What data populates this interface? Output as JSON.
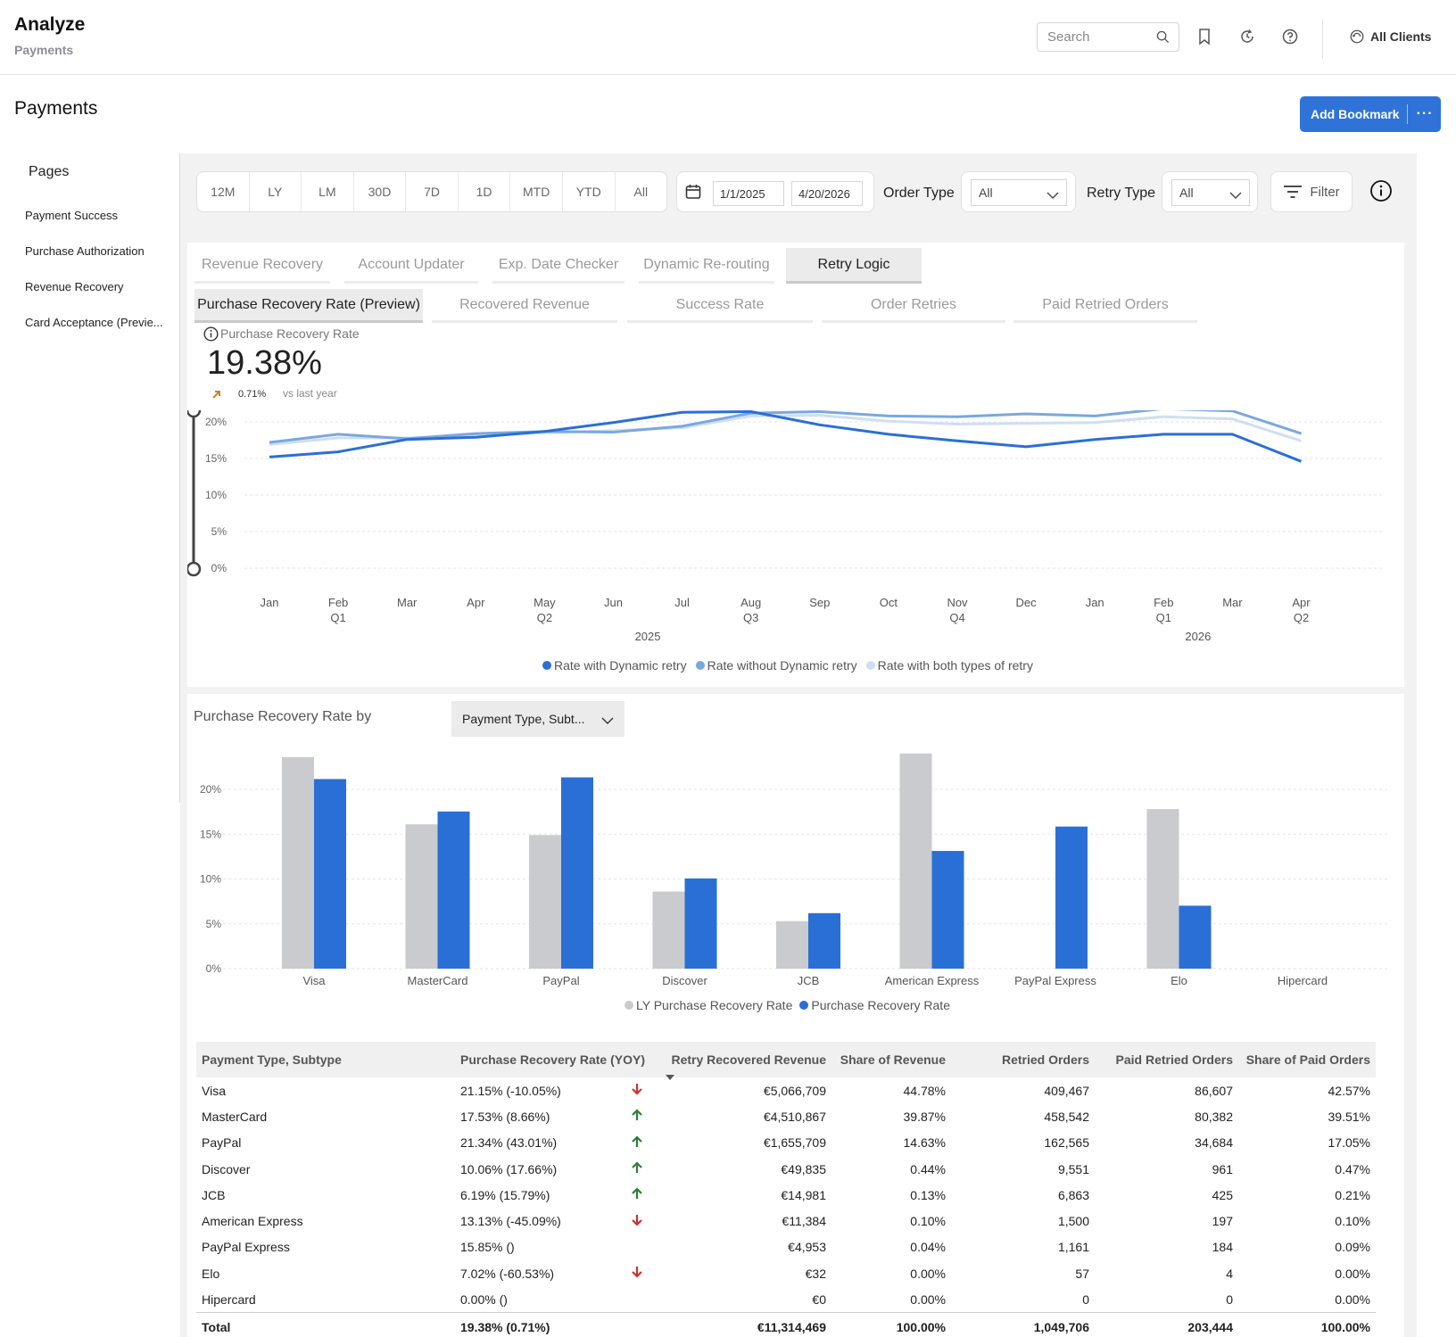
{
  "header": {
    "app_title": "Analyze",
    "app_subtitle": "Payments",
    "search_placeholder": "Search",
    "clients_label": "All Clients"
  },
  "page": {
    "title": "Payments",
    "bookmark_label": "Add Bookmark",
    "more_label": "···"
  },
  "sidebar": {
    "title": "Pages",
    "items": [
      {
        "label": "Payment Success"
      },
      {
        "label": "Purchase Authorization"
      },
      {
        "label": "Revenue Recovery"
      },
      {
        "label": "Card Acceptance (Previe..."
      }
    ]
  },
  "filters": {
    "ranges": [
      "12M",
      "LY",
      "LM",
      "30D",
      "7D",
      "1D",
      "MTD",
      "YTD",
      "All"
    ],
    "date_start": "1/1/2025",
    "date_end": "4/20/2026",
    "order_type_label": "Order Type",
    "order_type_value": "All",
    "retry_type_label": "Retry Type",
    "retry_type_value": "All",
    "filter_label": "Filter"
  },
  "tabs": [
    {
      "label": "Revenue Recovery",
      "active": false
    },
    {
      "label": "Account Updater",
      "active": false
    },
    {
      "label": "Exp. Date Checker",
      "active": false
    },
    {
      "label": "Dynamic Re-routing",
      "active": false
    },
    {
      "label": "Retry Logic",
      "active": true
    }
  ],
  "subtabs": [
    {
      "label": "Purchase Recovery Rate (Preview)",
      "active": true
    },
    {
      "label": "Recovered Revenue",
      "active": false
    },
    {
      "label": "Success Rate",
      "active": false
    },
    {
      "label": "Order Retries",
      "active": false
    },
    {
      "label": "Paid Retried Orders",
      "active": false
    }
  ],
  "kpi": {
    "label": "Purchase Recovery Rate",
    "value": "19.38%",
    "delta": "0.71%",
    "comparison": "vs last year"
  },
  "chart_data": [
    {
      "type": "line",
      "x": [
        "Jan 2025",
        "Feb 2025",
        "Mar 2025",
        "Apr 2025",
        "May 2025",
        "Jun 2025",
        "Jul 2025",
        "Aug 2025",
        "Sep 2025",
        "Oct 2025",
        "Nov 2025",
        "Dec 2025",
        "Jan 2026",
        "Feb 2026",
        "Mar 2026",
        "Apr 2026"
      ],
      "tick_labels": [
        "Jan",
        "Feb",
        "Mar",
        "Apr",
        "May",
        "Jun",
        "Jul",
        "Aug",
        "Sep",
        "Oct",
        "Nov",
        "Dec",
        "Jan",
        "Feb",
        "Mar",
        "Apr"
      ],
      "quarter_labels": {
        "1": "Q1",
        "4": "Q2",
        "7": "Q3",
        "10": "Q4",
        "13": "Q1",
        "15": "Q2"
      },
      "year_labels": [
        {
          "label": "2025",
          "at": 5.5
        },
        {
          "label": "2026",
          "at": 13.5
        }
      ],
      "y_ticks": [
        "0%",
        "5%",
        "10%",
        "15%",
        "20%"
      ],
      "ylim": [
        0,
        20
      ],
      "grid": true,
      "legend_position": "bottom",
      "series": [
        {
          "name": "Rate with Dynamic retry",
          "color": "#2a6fd6",
          "values": [
            15.2,
            15.9,
            17.6,
            17.9,
            18.7,
            19.9,
            21.3,
            21.4,
            19.6,
            18.3,
            17.4,
            16.6,
            17.6,
            18.3,
            18.3,
            14.6
          ]
        },
        {
          "name": "Rate without Dynamic retry",
          "color": "#7aa8e0",
          "values": [
            17.2,
            18.3,
            17.7,
            18.4,
            18.7,
            18.6,
            19.4,
            21.2,
            21.4,
            20.8,
            20.7,
            21.1,
            20.8,
            21.8,
            21.5,
            18.4
          ]
        },
        {
          "name": "Rate with both types of retry",
          "color": "#cfdff2",
          "values": [
            16.9,
            17.8,
            17.8,
            18.1,
            18.5,
            18.8,
            19.2,
            20.8,
            20.9,
            20.1,
            19.7,
            19.8,
            19.9,
            20.7,
            20.4,
            17.4
          ]
        }
      ]
    },
    {
      "type": "bar",
      "title": "Purchase Recovery Rate by",
      "categories": [
        "Visa",
        "MasterCard",
        "PayPal",
        "Discover",
        "JCB",
        "American Express",
        "PayPal Express",
        "Elo",
        "Hipercard"
      ],
      "y_ticks": [
        "0%",
        "5%",
        "10%",
        "15%",
        "20%"
      ],
      "ylim": [
        0,
        24
      ],
      "grid": true,
      "legend_position": "bottom",
      "series": [
        {
          "name": "LY Purchase Recovery Rate",
          "color": "#c9cbcf",
          "values": [
            23.6,
            16.1,
            14.9,
            8.6,
            5.3,
            24.0,
            0,
            17.8,
            0
          ]
        },
        {
          "name": "Purchase Recovery Rate",
          "color": "#2a6fd6",
          "values": [
            21.15,
            17.53,
            21.34,
            10.06,
            6.19,
            13.13,
            15.85,
            7.02,
            0.0
          ]
        }
      ]
    }
  ],
  "dimension_select": "Payment Type, Subt...",
  "table": {
    "columns": [
      "Payment Type, Subtype",
      "Purchase Recovery Rate (YOY)",
      "Retry Recovered Revenue",
      "Share of Revenue",
      "Retried Orders",
      "Paid Retried Orders",
      "Share of Paid Orders"
    ],
    "rows": [
      {
        "name": "Visa",
        "rate": "21.15% (-10.05%)",
        "trend": "down",
        "revenue": "€5,066,709",
        "share_rev": "44.78%",
        "retried": "409,467",
        "paid": "86,607",
        "share_paid": "42.57%"
      },
      {
        "name": "MasterCard",
        "rate": "17.53% (8.66%)",
        "trend": "up",
        "revenue": "€4,510,867",
        "share_rev": "39.87%",
        "retried": "458,542",
        "paid": "80,382",
        "share_paid": "39.51%"
      },
      {
        "name": "PayPal",
        "rate": "21.34% (43.01%)",
        "trend": "up",
        "revenue": "€1,655,709",
        "share_rev": "14.63%",
        "retried": "162,565",
        "paid": "34,684",
        "share_paid": "17.05%"
      },
      {
        "name": "Discover",
        "rate": "10.06% (17.66%)",
        "trend": "up",
        "revenue": "€49,835",
        "share_rev": "0.44%",
        "retried": "9,551",
        "paid": "961",
        "share_paid": "0.47%"
      },
      {
        "name": "JCB",
        "rate": "6.19% (15.79%)",
        "trend": "up",
        "revenue": "€14,981",
        "share_rev": "0.13%",
        "retried": "6,863",
        "paid": "425",
        "share_paid": "0.21%"
      },
      {
        "name": "American Express",
        "rate": "13.13% (-45.09%)",
        "trend": "down",
        "revenue": "€11,384",
        "share_rev": "0.10%",
        "retried": "1,500",
        "paid": "197",
        "share_paid": "0.10%"
      },
      {
        "name": "PayPal Express",
        "rate": "15.85% ()",
        "trend": "",
        "revenue": "€4,953",
        "share_rev": "0.04%",
        "retried": "1,161",
        "paid": "184",
        "share_paid": "0.09%"
      },
      {
        "name": "Elo",
        "rate": "7.02% (-60.53%)",
        "trend": "down",
        "revenue": "€32",
        "share_rev": "0.00%",
        "retried": "57",
        "paid": "4",
        "share_paid": "0.00%"
      },
      {
        "name": "Hipercard",
        "rate": "0.00% ()",
        "trend": "",
        "revenue": "€0",
        "share_rev": "0.00%",
        "retried": "0",
        "paid": "0",
        "share_paid": "0.00%"
      }
    ],
    "total": {
      "name": "Total",
      "rate": "19.38% (0.71%)",
      "revenue": "€11,314,469",
      "share_rev": "100.00%",
      "retried": "1,049,706",
      "paid": "203,444",
      "share_paid": "100.00%"
    }
  }
}
